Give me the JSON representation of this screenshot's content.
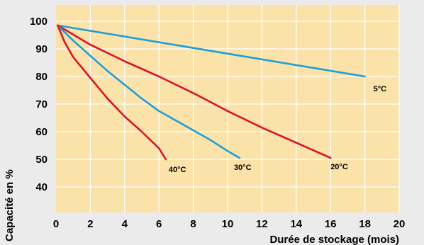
{
  "chart_data": {
    "type": "line",
    "title": "",
    "xlabel": "Durée de stockage (mois)",
    "ylabel": "Capacité en %",
    "xlim": [
      0,
      20
    ],
    "ylim": [
      30,
      100
    ],
    "x_ticks": [
      "0",
      "2",
      "4",
      "6",
      "8",
      "10",
      "12",
      "14",
      "16",
      "18",
      "20"
    ],
    "y_ticks": [
      "100",
      "90",
      "80",
      "70",
      "60",
      "50",
      "40"
    ],
    "grid": true,
    "legend": "none",
    "colors": {
      "background": "#ebebeb",
      "plot_area": "#fbe2a8",
      "grid": "#ffffff",
      "red": "#d9152b",
      "blue": "#1d9fd8"
    },
    "series": [
      {
        "name": "5°C",
        "color": "#1d9fd8",
        "x": [
          0.1,
          18
        ],
        "y": [
          98.5,
          80
        ]
      },
      {
        "name": "20°C",
        "color": "#d9152b",
        "x": [
          0.1,
          2,
          4,
          6,
          8,
          10,
          12,
          14,
          16
        ],
        "y": [
          98.5,
          91.5,
          85.5,
          80,
          74,
          67.5,
          61.5,
          56,
          50.5
        ]
      },
      {
        "name": "30°C",
        "color": "#1d9fd8",
        "x": [
          0.1,
          1,
          2,
          3,
          4,
          5,
          6,
          7,
          8,
          9,
          10,
          10.7
        ],
        "y": [
          98.5,
          93,
          87.5,
          82,
          77,
          72,
          67.5,
          64,
          60.5,
          57,
          53,
          50.5
        ]
      },
      {
        "name": "40°C",
        "color": "#d9152b",
        "x": [
          0.1,
          0.5,
          1,
          2,
          3,
          4,
          5,
          6,
          6.4
        ],
        "y": [
          98.5,
          92.5,
          87,
          79.5,
          72,
          65.5,
          60,
          54,
          50
        ]
      }
    ]
  }
}
